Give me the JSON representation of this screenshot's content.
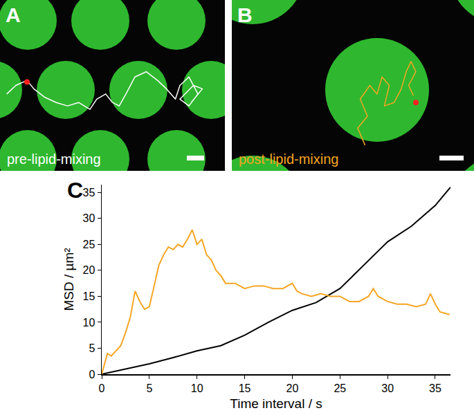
{
  "panels": [
    {
      "label": "A",
      "caption": "pre-lipid-mixing",
      "caption_color": "white",
      "track_color": "white",
      "track": [
        [
          0.03,
          0.55
        ],
        [
          0.07,
          0.5
        ],
        [
          0.12,
          0.47
        ],
        [
          0.15,
          0.52
        ],
        [
          0.2,
          0.57
        ],
        [
          0.25,
          0.6
        ],
        [
          0.3,
          0.62
        ],
        [
          0.35,
          0.6
        ],
        [
          0.4,
          0.64
        ],
        [
          0.43,
          0.58
        ],
        [
          0.47,
          0.55
        ],
        [
          0.5,
          0.6
        ],
        [
          0.53,
          0.62
        ],
        [
          0.56,
          0.55
        ],
        [
          0.6,
          0.45
        ],
        [
          0.65,
          0.42
        ],
        [
          0.7,
          0.47
        ],
        [
          0.74,
          0.52
        ],
        [
          0.78,
          0.58
        ],
        [
          0.8,
          0.5
        ],
        [
          0.84,
          0.45
        ],
        [
          0.88,
          0.55
        ],
        [
          0.84,
          0.62
        ],
        [
          0.8,
          0.58
        ],
        [
          0.86,
          0.5
        ],
        [
          0.9,
          0.52
        ],
        [
          0.85,
          0.6
        ]
      ],
      "spot": [
        0.12,
        0.48
      ]
    },
    {
      "label": "B",
      "caption": "post-lipid-mixing",
      "caption_color": "#f5a623",
      "track_color": "#f5a623",
      "track": [
        [
          0.55,
          0.85
        ],
        [
          0.52,
          0.75
        ],
        [
          0.56,
          0.68
        ],
        [
          0.53,
          0.58
        ],
        [
          0.57,
          0.5
        ],
        [
          0.6,
          0.55
        ],
        [
          0.62,
          0.45
        ],
        [
          0.65,
          0.5
        ],
        [
          0.63,
          0.62
        ],
        [
          0.67,
          0.6
        ],
        [
          0.7,
          0.52
        ],
        [
          0.72,
          0.42
        ],
        [
          0.74,
          0.36
        ],
        [
          0.76,
          0.42
        ],
        [
          0.73,
          0.5
        ],
        [
          0.75,
          0.56
        ]
      ],
      "spot": [
        0.76,
        0.6
      ]
    }
  ],
  "chart_data": {
    "label": "C",
    "type": "line",
    "x_label": "Time interval / s",
    "y_label": "MSD / µm²",
    "xlim": [
      0,
      36.6
    ],
    "ylim": [
      0,
      36.5
    ],
    "xticks": [
      0,
      5,
      10,
      15,
      20,
      25,
      30,
      35
    ],
    "yticks": [
      0,
      5,
      10,
      15,
      20,
      25,
      30,
      35
    ],
    "grid": false,
    "series": [
      {
        "color": "#000000",
        "x": [
          0,
          2.5,
          5,
          7.5,
          10,
          12.5,
          15,
          17.5,
          20,
          22.5,
          25,
          27.5,
          30,
          32.5,
          35,
          36.6
        ],
        "values": [
          0,
          1,
          2,
          3.2,
          4.5,
          5.5,
          7.5,
          10,
          12.3,
          13.8,
          16.5,
          21,
          25.5,
          28.5,
          32.5,
          36
        ]
      },
      {
        "color": "#f5a623",
        "x": [
          0,
          0.3,
          0.6,
          1,
          1.5,
          2,
          2.5,
          3,
          3.5,
          4,
          4.5,
          5,
          5.5,
          6,
          6.5,
          7,
          7.5,
          8,
          8.5,
          9,
          9.5,
          10,
          10.5,
          11,
          11.5,
          12,
          12.5,
          13,
          14,
          15,
          16,
          17,
          18,
          19,
          20,
          20.5,
          21,
          22,
          23,
          24,
          25,
          26,
          27,
          28,
          28.5,
          29,
          30,
          31,
          32,
          33,
          34,
          34.5,
          35,
          35.5,
          36.5
        ],
        "values": [
          0,
          2,
          4,
          3.5,
          4.5,
          5.5,
          8,
          11,
          16,
          14,
          12.5,
          13,
          17,
          21,
          23,
          24.5,
          24,
          25,
          24.5,
          26,
          27.8,
          25,
          26,
          23,
          22,
          20,
          19,
          17.5,
          17.5,
          16.5,
          17,
          17,
          16.5,
          16.5,
          17.5,
          16,
          15.5,
          15,
          15.5,
          15,
          15,
          14,
          14,
          15,
          16.5,
          15,
          14,
          13.5,
          13.5,
          13,
          13.5,
          15.5,
          13.5,
          12,
          11.5
        ]
      }
    ]
  }
}
